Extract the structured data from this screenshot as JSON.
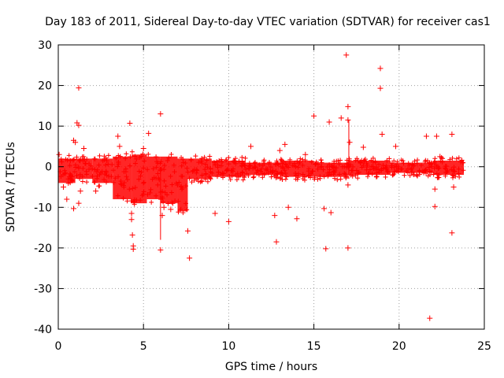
{
  "chart_data": {
    "type": "scatter",
    "title": "Day 183 of 2011, Sidereal Day-to-day VTEC variation (SDTVAR) for receiver cas1",
    "xlabel": "GPS time / hours",
    "ylabel": "SDTVAR / TECUs",
    "xlim": [
      0,
      25
    ],
    "ylim": [
      -40,
      30
    ],
    "grid": true,
    "marker": "+",
    "color": "#ff0000",
    "x_ticks": [
      0,
      5,
      10,
      15,
      20,
      25
    ],
    "x_tick_labels": [
      "0",
      "5",
      "10",
      "15",
      "20",
      "25"
    ],
    "y_ticks": [
      -40,
      -30,
      -20,
      -10,
      0,
      10,
      20,
      30
    ],
    "y_tick_labels": [
      "-40",
      "-30",
      "-20",
      "-10",
      "0",
      "10",
      "20",
      "30"
    ],
    "series": [
      {
        "name": "SDTVAR",
        "dense_band": [
          {
            "x": [
              0.0,
              1.0
            ],
            "y_range": [
              -4,
              2
            ]
          },
          {
            "x": [
              1.0,
              2.0
            ],
            "y_range": [
              -3,
              2
            ]
          },
          {
            "x": [
              2.0,
              3.2
            ],
            "y_range": [
              -4,
              2
            ]
          },
          {
            "x": [
              3.2,
              4.3
            ],
            "y_range": [
              -8,
              2.5
            ]
          },
          {
            "x": [
              4.3,
              5.2
            ],
            "y_range": [
              -9,
              3
            ]
          },
          {
            "x": [
              5.2,
              6.0
            ],
            "y_range": [
              -8,
              2.5
            ]
          },
          {
            "x": [
              6.0,
              7.0
            ],
            "y_range": [
              -9,
              2.5
            ]
          },
          {
            "x": [
              7.0,
              7.6
            ],
            "y_range": [
              -11,
              2
            ]
          },
          {
            "x": [
              7.6,
              9.0
            ],
            "y_range": [
              -3,
              2
            ]
          },
          {
            "x": [
              9.0,
              11.0
            ],
            "y_range": [
              -2.5,
              1.5
            ]
          },
          {
            "x": [
              11.0,
              13.0
            ],
            "y_range": [
              -2,
              1
            ]
          },
          {
            "x": [
              13.0,
              15.0
            ],
            "y_range": [
              -2.5,
              1.5
            ]
          },
          {
            "x": [
              15.0,
              17.0
            ],
            "y_range": [
              -2.5,
              1
            ]
          },
          {
            "x": [
              17.0,
              19.5
            ],
            "y_range": [
              -2,
              1.5
            ]
          },
          {
            "x": [
              19.5,
              22.0
            ],
            "y_range": [
              -1.5,
              1
            ]
          },
          {
            "x": [
              22.0,
              23.8
            ],
            "y_range": [
              -2,
              1.5
            ]
          }
        ],
        "points": [
          {
            "x": 0.05,
            "y": 3.0
          },
          {
            "x": 0.3,
            "y": -5.0
          },
          {
            "x": 0.5,
            "y": -8.0
          },
          {
            "x": 0.9,
            "y": -10.3
          },
          {
            "x": 0.9,
            "y": 6.5
          },
          {
            "x": 1.0,
            "y": 6.0
          },
          {
            "x": 1.1,
            "y": 10.8
          },
          {
            "x": 1.2,
            "y": 10.2
          },
          {
            "x": 1.2,
            "y": 19.4
          },
          {
            "x": 1.2,
            "y": -9.0
          },
          {
            "x": 1.3,
            "y": -6.0
          },
          {
            "x": 1.5,
            "y": 4.5
          },
          {
            "x": 2.2,
            "y": -6.0
          },
          {
            "x": 3.5,
            "y": 7.5
          },
          {
            "x": 3.6,
            "y": 5.0
          },
          {
            "x": 4.2,
            "y": 10.7
          },
          {
            "x": 4.3,
            "y": -11.5
          },
          {
            "x": 4.3,
            "y": -13.0
          },
          {
            "x": 4.35,
            "y": -16.8
          },
          {
            "x": 4.4,
            "y": -19.5
          },
          {
            "x": 4.4,
            "y": -20.3
          },
          {
            "x": 5.0,
            "y": 4.5
          },
          {
            "x": 5.3,
            "y": 8.2
          },
          {
            "x": 6.0,
            "y": 13.0
          },
          {
            "x": 6.0,
            "y": -20.5
          },
          {
            "x": 6.1,
            "y": -12.0
          },
          {
            "x": 6.2,
            "y": -10.0
          },
          {
            "x": 6.6,
            "y": -10.5
          },
          {
            "x": 7.6,
            "y": -15.8
          },
          {
            "x": 7.7,
            "y": -22.5
          },
          {
            "x": 9.2,
            "y": -11.5
          },
          {
            "x": 10.0,
            "y": -13.5
          },
          {
            "x": 11.3,
            "y": 5.0
          },
          {
            "x": 12.7,
            "y": -12.0
          },
          {
            "x": 12.8,
            "y": -18.5
          },
          {
            "x": 13.0,
            "y": 4.0
          },
          {
            "x": 13.3,
            "y": 5.5
          },
          {
            "x": 13.5,
            "y": -10.0
          },
          {
            "x": 14.0,
            "y": -12.8
          },
          {
            "x": 14.5,
            "y": 3.0
          },
          {
            "x": 15.0,
            "y": 12.5
          },
          {
            "x": 15.6,
            "y": -10.3
          },
          {
            "x": 15.7,
            "y": -20.2
          },
          {
            "x": 15.9,
            "y": 11.0
          },
          {
            "x": 16.0,
            "y": -11.3
          },
          {
            "x": 16.6,
            "y": 12.0
          },
          {
            "x": 16.9,
            "y": 27.5
          },
          {
            "x": 17.0,
            "y": 14.8
          },
          {
            "x": 17.0,
            "y": -4.5
          },
          {
            "x": 17.0,
            "y": -20.0
          },
          {
            "x": 17.0,
            "y": 11.5
          },
          {
            "x": 17.1,
            "y": 6.0
          },
          {
            "x": 17.9,
            "y": 4.8
          },
          {
            "x": 18.9,
            "y": 24.2
          },
          {
            "x": 18.9,
            "y": 19.3
          },
          {
            "x": 19.0,
            "y": 8.0
          },
          {
            "x": 19.8,
            "y": 5.0
          },
          {
            "x": 21.6,
            "y": 7.5
          },
          {
            "x": 21.8,
            "y": -37.3
          },
          {
            "x": 22.1,
            "y": -5.5
          },
          {
            "x": 22.1,
            "y": -9.8
          },
          {
            "x": 22.2,
            "y": 7.5
          },
          {
            "x": 22.4,
            "y": 2.5
          },
          {
            "x": 23.1,
            "y": 8.0
          },
          {
            "x": 23.1,
            "y": -16.3
          },
          {
            "x": 23.2,
            "y": -5.0
          }
        ],
        "vertical_lines": [
          {
            "x": 6.0,
            "y": [
              -18.0,
              0.0
            ]
          },
          {
            "x": 17.05,
            "y": [
              -3.0,
              11.5
            ]
          }
        ]
      }
    ]
  }
}
